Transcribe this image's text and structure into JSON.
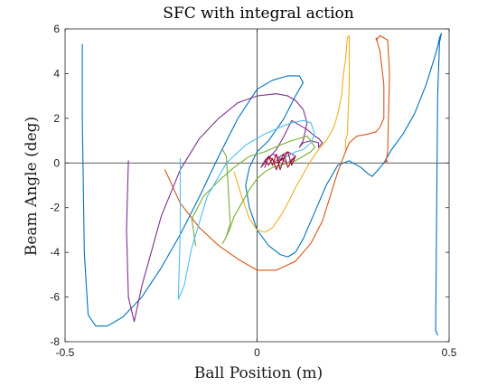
{
  "chart_data": {
    "type": "line",
    "title": "SFC with integral action",
    "xlabel": "Ball Position (m)",
    "ylabel": "Beam Angle (deg)",
    "xlim": [
      -0.5,
      0.5
    ],
    "ylim": [
      -8,
      6
    ],
    "xticks": [
      -0.5,
      0,
      0.5
    ],
    "yticks": [
      -8,
      -6,
      -4,
      -2,
      0,
      2,
      4,
      6
    ],
    "x_tick_labels": [
      "-0.5",
      "0",
      "0.5"
    ],
    "y_tick_labels": [
      "-8",
      "-6",
      "-4",
      "-2",
      "0",
      "2",
      "4",
      "6"
    ],
    "reference_lines": {
      "x": 0,
      "y": 0
    },
    "grid": false,
    "series": [
      {
        "color": "#0072BD",
        "x": [
          -0.455,
          -0.455,
          -0.45,
          -0.44,
          -0.42,
          -0.39,
          -0.35,
          -0.3,
          -0.25,
          -0.2,
          -0.15,
          -0.1,
          -0.05,
          0.0,
          0.04,
          0.08,
          0.11,
          0.12,
          0.1,
          0.07,
          0.03,
          0.0,
          -0.02,
          -0.03,
          -0.02,
          0.0,
          0.03,
          0.06,
          0.08,
          0.1,
          0.12,
          0.15,
          0.18,
          0.21,
          0.24,
          0.27,
          0.29,
          0.3,
          0.31,
          0.33,
          0.35,
          0.38,
          0.41,
          0.44,
          0.46,
          0.47,
          0.475,
          0.48,
          0.475,
          0.47,
          0.465,
          0.47
        ],
        "y": [
          5.3,
          2.0,
          -4.0,
          -6.8,
          -7.3,
          -7.3,
          -6.9,
          -6.0,
          -4.7,
          -3.2,
          -1.5,
          0.3,
          2.0,
          3.3,
          3.7,
          3.9,
          3.9,
          3.6,
          3.0,
          2.0,
          1.0,
          0.5,
          -0.2,
          -1.0,
          -2.0,
          -3.0,
          -3.7,
          -4.1,
          -4.2,
          -4.0,
          -3.4,
          -2.2,
          -1.0,
          -0.1,
          0.1,
          -0.2,
          -0.5,
          -0.6,
          -0.4,
          0.0,
          0.6,
          1.3,
          2.2,
          3.5,
          4.6,
          5.2,
          5.6,
          5.8,
          5.4,
          3.0,
          -7.5,
          -7.7
        ]
      },
      {
        "color": "#D95319",
        "x": [
          -0.24,
          -0.2,
          -0.15,
          -0.1,
          -0.05,
          0.0,
          0.05,
          0.1,
          0.14,
          0.17,
          0.19,
          0.21,
          0.23,
          0.24,
          0.26,
          0.29,
          0.31,
          0.32,
          0.33,
          0.33,
          0.32,
          0.31,
          0.31,
          0.32,
          0.33,
          0.34,
          0.345,
          0.34,
          0.335,
          0.34
        ],
        "y": [
          -0.3,
          -1.8,
          -2.9,
          -3.7,
          -4.3,
          -4.8,
          -4.8,
          -4.4,
          -3.6,
          -2.6,
          -1.5,
          -0.4,
          0.5,
          0.9,
          1.2,
          1.3,
          1.4,
          1.6,
          2.0,
          3.5,
          5.0,
          5.6,
          5.5,
          5.7,
          5.6,
          5.5,
          4.0,
          0.5,
          0.0,
          0.1
        ]
      },
      {
        "color": "#EDB120",
        "x": [
          -0.06,
          -0.04,
          -0.02,
          0.0,
          0.02,
          0.04,
          0.06,
          0.08,
          0.1,
          0.12,
          0.14,
          0.16,
          0.18,
          0.19,
          0.2,
          0.21,
          0.22,
          0.225,
          0.23,
          0.235,
          0.24,
          0.24,
          0.235,
          0.23,
          0.23
        ],
        "y": [
          -0.4,
          -1.5,
          -2.5,
          -3.0,
          -3.1,
          -2.9,
          -2.4,
          -1.8,
          -1.1,
          -0.5,
          0.1,
          0.6,
          1.0,
          1.3,
          1.6,
          2.2,
          3.0,
          4.0,
          4.6,
          5.6,
          5.7,
          3.5,
          1.3,
          1.0,
          0.6
        ]
      },
      {
        "color": "#7E2F8E",
        "x": [
          -0.335,
          -0.34,
          -0.335,
          -0.32,
          -0.3,
          -0.25,
          -0.2,
          -0.15,
          -0.1,
          -0.05,
          0.0,
          0.05,
          0.08,
          0.1,
          0.12,
          0.13,
          0.12,
          0.11,
          0.12,
          0.14,
          0.16,
          0.16,
          0.17,
          0.16,
          0.15,
          0.13,
          0.11,
          0.09,
          0.07,
          0.05,
          0.03,
          0.01,
          0.02,
          0.04,
          0.06,
          0.08,
          0.1,
          0.08,
          0.06,
          0.05,
          0.07
        ],
        "y": [
          0.1,
          -3.0,
          -6.0,
          -7.1,
          -5.5,
          -2.4,
          -0.3,
          1.1,
          2.0,
          2.7,
          3.0,
          3.1,
          3.0,
          2.8,
          2.4,
          1.8,
          1.0,
          0.7,
          0.9,
          1.0,
          0.9,
          0.7,
          0.9,
          1.1,
          1.2,
          1.5,
          1.7,
          1.9,
          1.2,
          0.6,
          0.2,
          -0.2,
          0.1,
          0.4,
          0.2,
          0.0,
          0.3,
          0.5,
          0.3,
          0.1,
          0.2
        ]
      },
      {
        "color": "#77AC30",
        "x": [
          -0.16,
          -0.17,
          -0.14,
          -0.1,
          -0.06,
          -0.02,
          0.02,
          0.06,
          0.09,
          0.11,
          0.13,
          0.14,
          0.15,
          0.14,
          0.12,
          0.1,
          0.08,
          0.06,
          0.04,
          0.02,
          0.0,
          -0.02,
          -0.04,
          -0.06,
          -0.07,
          -0.08,
          -0.09,
          -0.08,
          -0.07,
          -0.08,
          -0.09
        ],
        "y": [
          -3.7,
          -2.5,
          -1.5,
          -0.8,
          -0.2,
          0.3,
          0.5,
          0.8,
          1.0,
          1.1,
          1.2,
          1.0,
          0.7,
          0.5,
          0.3,
          0.1,
          0.0,
          -0.1,
          -0.2,
          -0.4,
          -0.7,
          -1.2,
          -1.8,
          -2.4,
          -2.9,
          -3.3,
          -3.6,
          -3.3,
          -2.7,
          0.3,
          0.6
        ]
      },
      {
        "color": "#4DBEEE",
        "x": [
          -0.2,
          -0.2,
          -0.205,
          -0.19,
          -0.17,
          -0.13,
          -0.08,
          -0.03,
          0.02,
          0.06,
          0.09,
          0.12,
          0.14,
          0.15,
          0.14,
          0.12,
          0.1,
          0.08,
          0.06
        ],
        "y": [
          0.2,
          -3.0,
          -6.1,
          -5.5,
          -3.8,
          -1.5,
          0.0,
          0.8,
          1.3,
          1.6,
          1.8,
          1.9,
          1.8,
          1.3,
          0.9,
          0.6,
          0.5,
          0.3,
          0.2
        ]
      },
      {
        "color": "#A2142F",
        "x": [
          0.02,
          0.03,
          0.04,
          0.05,
          0.06,
          0.07,
          0.08,
          0.09,
          0.1,
          0.09,
          0.08,
          0.07,
          0.06,
          0.05,
          0.04,
          0.03,
          0.02,
          0.03,
          0.05,
          0.07
        ],
        "y": [
          -0.2,
          0.3,
          -0.1,
          0.4,
          -0.3,
          0.2,
          0.5,
          -0.1,
          0.3,
          0.1,
          -0.2,
          0.4,
          0.1,
          -0.3,
          0.2,
          -0.1,
          0.1,
          0.3,
          0.0,
          0.2
        ]
      }
    ]
  }
}
